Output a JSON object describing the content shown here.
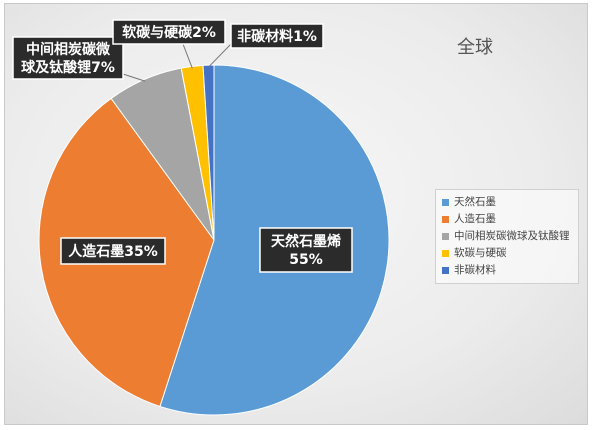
{
  "chart_data": {
    "type": "pie",
    "title": "全球",
    "categories": [
      "天然石墨",
      "人造石墨",
      "中间相炭碳微球及钛酸锂",
      "软碳与硬碳",
      "非碳材料"
    ],
    "values": [
      55,
      35,
      7,
      2,
      1
    ],
    "colors": [
      "#5b9bd5",
      "#ed7d31",
      "#a5a5a5",
      "#ffc000",
      "#4472c4"
    ],
    "data_labels": [
      [
        "天然石墨烯",
        "55%"
      ],
      [
        "人造石墨35%"
      ],
      [
        "中间相炭碳微",
        "球及钛酸锂7%"
      ],
      [
        "软碳与硬碳2%"
      ],
      [
        "非碳材料1%"
      ]
    ],
    "legend_position": "right",
    "start_angle_deg": 0,
    "direction": "clockwise"
  }
}
